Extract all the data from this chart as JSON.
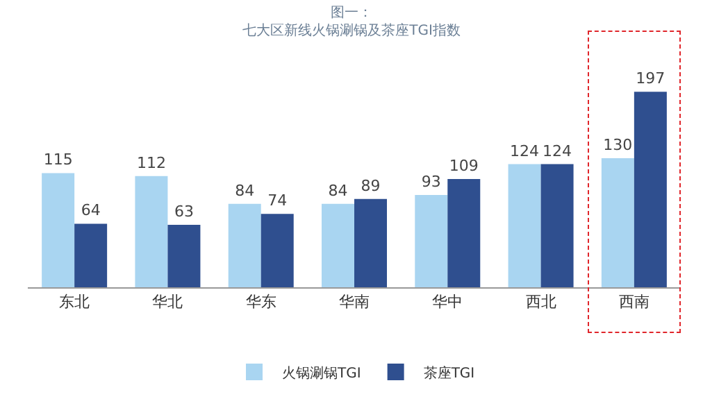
{
  "chart_data": {
    "type": "bar",
    "title": "图一：",
    "subtitle": "七大区新线火锅涮锅及茶座TGI指数",
    "categories": [
      "东北",
      "华北",
      "华东",
      "华南",
      "华中",
      "西北",
      "西南"
    ],
    "series": [
      {
        "name": "火锅涮锅TGI",
        "color": "#a9d5f1",
        "values": [
          115,
          112,
          84,
          84,
          93,
          124,
          130
        ]
      },
      {
        "name": "茶座TGI",
        "color": "#2f4f8f",
        "values": [
          64,
          63,
          74,
          89,
          109,
          124,
          197
        ]
      }
    ],
    "data_labels": true,
    "legend": "bottom"
  }
}
